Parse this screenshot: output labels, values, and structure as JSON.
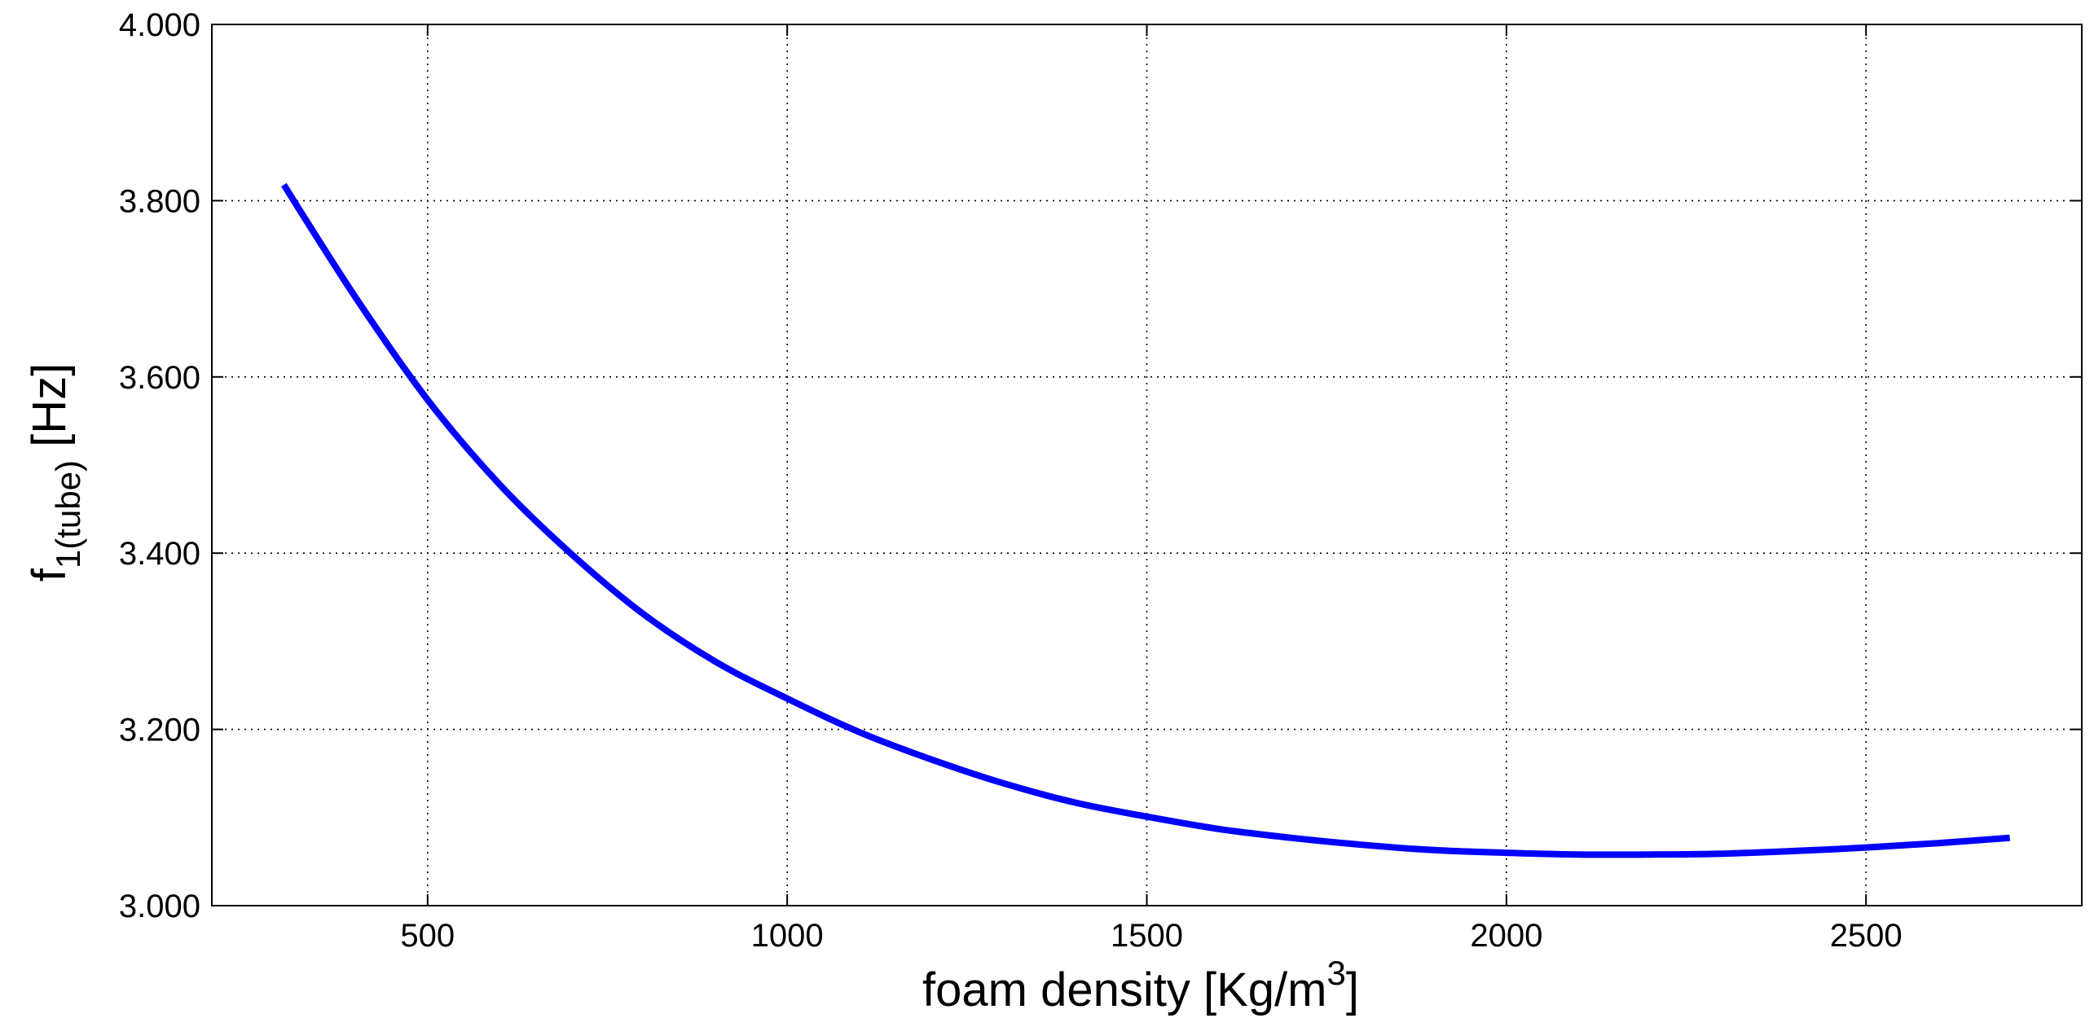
{
  "chart_data": {
    "type": "line",
    "xlabel_main": "foam density [Kg/m",
    "xlabel_sup": "3",
    "xlabel_tail": "]",
    "ylabel_main": "f",
    "ylabel_sub": "1(tube)",
    "ylabel_tail": " [Hz]",
    "xlim": [
      200,
      2800
    ],
    "ylim": [
      3.0,
      4.0
    ],
    "x_ticks": [
      500,
      1000,
      1500,
      2000,
      2500
    ],
    "x_tick_labels": [
      "500",
      "1000",
      "1500",
      "2000",
      "2500"
    ],
    "y_ticks": [
      3.0,
      3.2,
      3.4,
      3.6,
      3.8,
      4.0
    ],
    "y_tick_labels": [
      "3.000",
      "3.200",
      "3.400",
      "3.600",
      "3.800",
      "4.000"
    ],
    "grid": true,
    "series_color": "#0000ff",
    "series": [
      {
        "x": [
          300,
          400,
          500,
          600,
          700,
          800,
          900,
          1000,
          1100,
          1200,
          1300,
          1400,
          1500,
          1600,
          1700,
          1800,
          1900,
          2000,
          2100,
          2200,
          2300,
          2400,
          2500,
          2600,
          2700
        ],
        "y": [
          3.818,
          3.69,
          3.574,
          3.478,
          3.399,
          3.331,
          3.277,
          3.235,
          3.197,
          3.166,
          3.139,
          3.117,
          3.101,
          3.087,
          3.077,
          3.069,
          3.063,
          3.06,
          3.058,
          3.058,
          3.059,
          3.062,
          3.066,
          3.071,
          3.077
        ]
      }
    ]
  }
}
